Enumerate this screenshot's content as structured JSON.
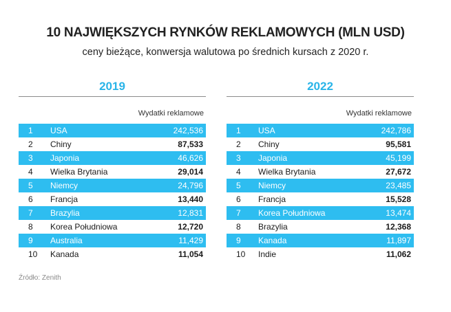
{
  "header": {
    "title": "10 NAJWIĘKSZYCH RYNKÓW REKLAMOWYCH (MLN USD)",
    "subtitle": "ceny bieżące, konwersja walutowa po średnich kursach z 2020 r."
  },
  "source": "Źródło: Zenith",
  "colors": {
    "accent": "#2ebdf0",
    "year_text": "#29b4e8"
  },
  "chart_data": [
    {
      "type": "table",
      "title": "2019",
      "column_header": "Wydatki reklamowe",
      "rows": [
        {
          "rank": "1",
          "country": "USA",
          "value": "242,536"
        },
        {
          "rank": "2",
          "country": "Chiny",
          "value": "87,533"
        },
        {
          "rank": "3",
          "country": "Japonia",
          "value": "46,626"
        },
        {
          "rank": "4",
          "country": "Wielka Brytania",
          "value": "29,014"
        },
        {
          "rank": "5",
          "country": "Niemcy",
          "value": "24,796"
        },
        {
          "rank": "6",
          "country": "Francja",
          "value": "13,440"
        },
        {
          "rank": "7",
          "country": "Brazylia",
          "value": "12,831"
        },
        {
          "rank": "8",
          "country": "Korea Południowa",
          "value": "12,720"
        },
        {
          "rank": "9",
          "country": "Australia",
          "value": "11,429"
        },
        {
          "rank": "10",
          "country": "Kanada",
          "value": "11,054"
        }
      ]
    },
    {
      "type": "table",
      "title": "2022",
      "column_header": "Wydatki reklamowe",
      "rows": [
        {
          "rank": "1",
          "country": "USA",
          "value": "242,786"
        },
        {
          "rank": "2",
          "country": "Chiny",
          "value": "95,581"
        },
        {
          "rank": "3",
          "country": "Japonia",
          "value": "45,199"
        },
        {
          "rank": "4",
          "country": "Wielka Brytania",
          "value": "27,672"
        },
        {
          "rank": "5",
          "country": "Niemcy",
          "value": "23,485"
        },
        {
          "rank": "6",
          "country": "Francja",
          "value": "15,528"
        },
        {
          "rank": "7",
          "country": "Korea Południowa",
          "value": "13,474"
        },
        {
          "rank": "8",
          "country": "Brazylia",
          "value": "12,368"
        },
        {
          "rank": "9",
          "country": "Kanada",
          "value": "11,897"
        },
        {
          "rank": "10",
          "country": "Indie",
          "value": "11,062"
        }
      ]
    }
  ]
}
